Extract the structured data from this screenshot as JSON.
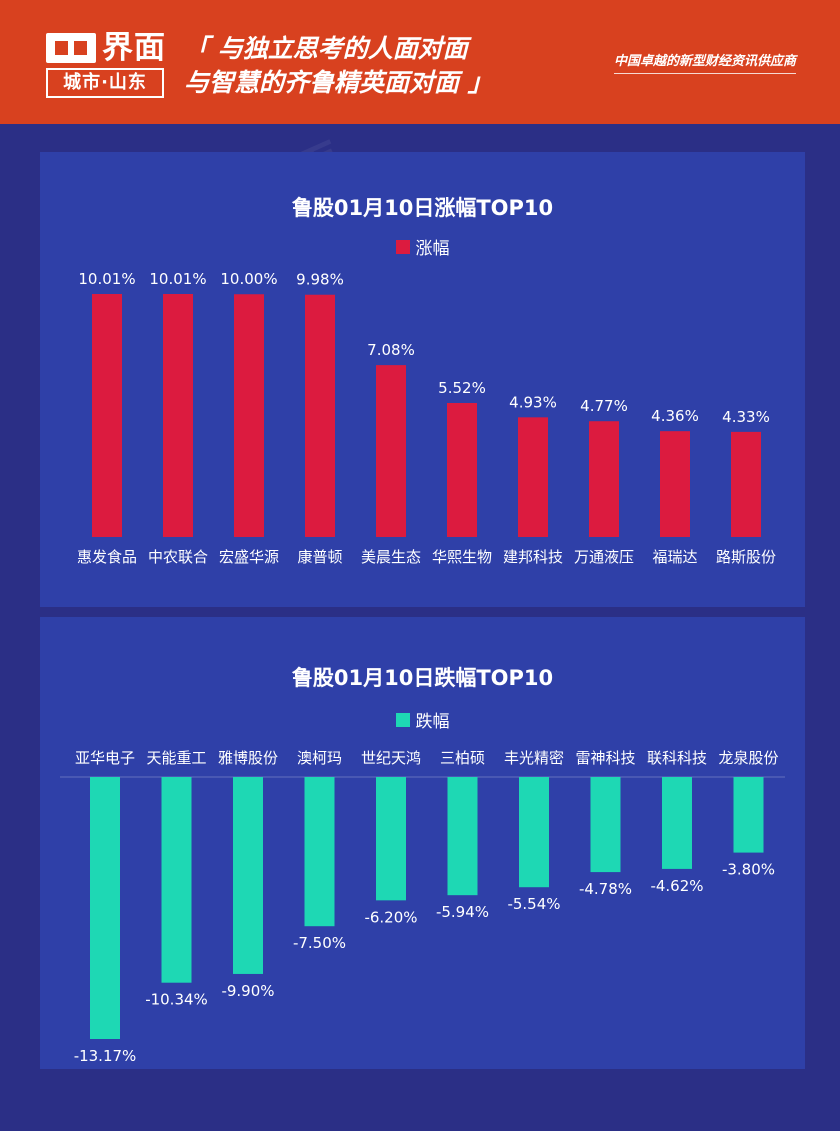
{
  "header": {
    "logo_name": "界面",
    "logo_sub": "城市·山东",
    "slogan_line1": "「 与独立思考的人面对面",
    "slogan_line2": "与智慧的齐鲁精英面对面 」",
    "tagline": "中国卓越的新型财经资讯供应商"
  },
  "watermark_text": "界面 城市·山东",
  "colors": {
    "header_bg": "#d8411f",
    "page_bg": "#2b2f86",
    "panel_bg": "#2f40a8",
    "gain_bar": "#dc1b3f",
    "loss_bar": "#1ed8b4"
  },
  "chart_data": [
    {
      "type": "bar",
      "title": "鲁股01月10日涨幅TOP10",
      "series": [
        {
          "name": "涨幅",
          "values": [
            10.01,
            10.01,
            10.0,
            9.98,
            7.08,
            5.52,
            4.93,
            4.77,
            4.36,
            4.33
          ]
        }
      ],
      "categories": [
        "惠发食品",
        "中农联合",
        "宏盛华源",
        "康普顿",
        "美晨生态",
        "华熙生物",
        "建邦科技",
        "万通液压",
        "福瑞达",
        "路斯股份"
      ],
      "labels": [
        "10.01%",
        "10.01%",
        "10.00%",
        "9.98%",
        "7.08%",
        "5.52%",
        "4.93%",
        "4.77%",
        "4.36%",
        "4.33%"
      ],
      "ylim": [
        0,
        10.01
      ],
      "grid": false,
      "legend": "top-center"
    },
    {
      "type": "bar",
      "title": "鲁股01月10日跌幅TOP10",
      "series": [
        {
          "name": "跌幅",
          "values": [
            -13.17,
            -10.34,
            -9.9,
            -7.5,
            -6.2,
            -5.94,
            -5.54,
            -4.78,
            -4.62,
            -3.8
          ]
        }
      ],
      "categories": [
        "亚华电子",
        "天能重工",
        "雅博股份",
        "澳柯玛",
        "世纪天鸿",
        "三柏硕",
        "丰光精密",
        "雷神科技",
        "联科科技",
        "龙泉股份"
      ],
      "labels": [
        "-13.17%",
        "-10.34%",
        "-9.90%",
        "-7.50%",
        "-6.20%",
        "-5.94%",
        "-5.54%",
        "-4.78%",
        "-4.62%",
        "-3.80%"
      ],
      "ylim": [
        -13.17,
        0
      ],
      "grid": false,
      "legend": "top-center"
    }
  ]
}
